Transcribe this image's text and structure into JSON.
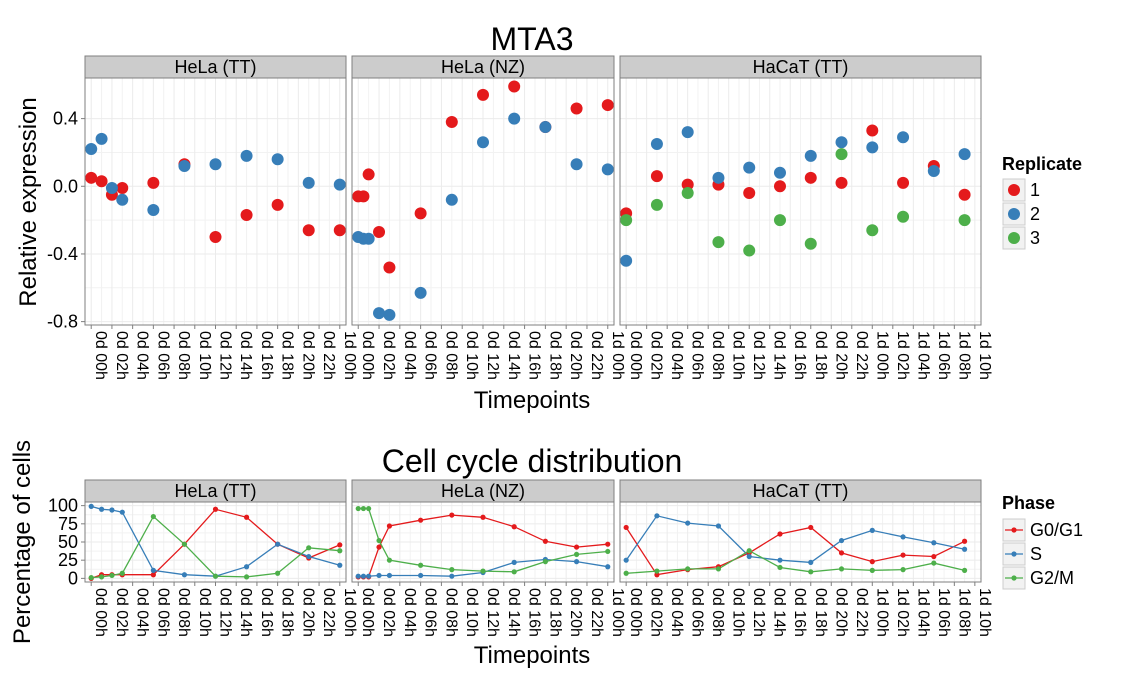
{
  "colors": {
    "rep1": "#E41A1C",
    "rep2": "#377EB8",
    "rep3": "#4DAF4A",
    "g0g1": "#E41A1C",
    "s": "#377EB8",
    "g2m": "#4DAF4A",
    "strip_bg": "#CCCCCC",
    "grid": "#EBEBEB"
  },
  "chart_data": [
    {
      "type": "scatter",
      "title": "MTA3",
      "xlabel": "Timepoints",
      "ylabel": "Relative expression",
      "ylim": [
        -0.82,
        0.64
      ],
      "yticks": [
        -0.8,
        -0.4,
        0.0,
        0.4
      ],
      "ytick_labels": [
        "-0.8",
        "-0.4",
        "0.0",
        "0.4"
      ],
      "legend": {
        "title": "Replicate",
        "position": "right",
        "labels": [
          "1",
          "2",
          "3"
        ]
      },
      "panels": [
        {
          "strip": "HeLa (TT)",
          "xrange": [
            -0.6,
            24.6
          ],
          "tick_positions": [
            0,
            2,
            4,
            6,
            8,
            10,
            12,
            14,
            16,
            18,
            20,
            22,
            24
          ],
          "tick_labels": [
            "0d 00h",
            "0d 02h",
            "0d 04h",
            "0d 06h",
            "0d 08h",
            "0d 10h",
            "0d 12h",
            "0d 14h",
            "0d 16h",
            "0d 18h",
            "0d 20h",
            "0d 22h",
            "1d 00h"
          ],
          "series": [
            {
              "name": "1",
              "x": [
                0,
                1,
                2,
                3,
                6,
                9,
                12,
                15,
                18,
                21,
                24
              ],
              "y": [
                0.05,
                0.03,
                -0.05,
                -0.01,
                0.02,
                0.13,
                -0.3,
                -0.17,
                -0.11,
                -0.26,
                -0.26
              ]
            },
            {
              "name": "2",
              "x": [
                0,
                1,
                2,
                3,
                6,
                9,
                12,
                15,
                18,
                21,
                24
              ],
              "y": [
                0.22,
                0.28,
                -0.01,
                -0.08,
                -0.14,
                0.12,
                0.13,
                0.18,
                0.16,
                0.02,
                0.01
              ]
            }
          ]
        },
        {
          "strip": "HeLa (NZ)",
          "xrange": [
            -0.6,
            24.6
          ],
          "tick_positions": [
            0,
            2,
            4,
            6,
            8,
            10,
            12,
            14,
            16,
            18,
            20,
            22,
            24
          ],
          "tick_labels": [
            "0d 00h",
            "0d 02h",
            "0d 04h",
            "0d 06h",
            "0d 08h",
            "0d 10h",
            "0d 12h",
            "0d 14h",
            "0d 16h",
            "0d 18h",
            "0d 20h",
            "0d 22h",
            "1d 00h"
          ],
          "series": [
            {
              "name": "1",
              "x": [
                0,
                0.5,
                1,
                2,
                3,
                6,
                9,
                12,
                15,
                18,
                21,
                24
              ],
              "y": [
                -0.06,
                -0.06,
                0.07,
                -0.27,
                -0.48,
                -0.16,
                0.38,
                0.54,
                0.59,
                0.35,
                0.46,
                0.48
              ]
            },
            {
              "name": "2",
              "x": [
                0,
                0.5,
                1,
                2,
                3,
                6,
                9,
                12,
                15,
                18,
                21,
                24
              ],
              "y": [
                -0.3,
                -0.31,
                -0.31,
                -0.75,
                -0.76,
                -0.63,
                -0.08,
                0.26,
                0.4,
                0.35,
                0.13,
                0.1
              ]
            }
          ]
        },
        {
          "strip": "HaCaT (TT)",
          "xrange": [
            -0.6,
            34.6
          ],
          "tick_positions": [
            0,
            2,
            4,
            6,
            8,
            10,
            12,
            14,
            16,
            18,
            20,
            22,
            24,
            26,
            28,
            30,
            32,
            34
          ],
          "tick_labels": [
            "0d 00h",
            "0d 02h",
            "0d 04h",
            "0d 06h",
            "0d 08h",
            "0d 10h",
            "0d 12h",
            "0d 14h",
            "0d 16h",
            "0d 18h",
            "0d 20h",
            "0d 22h",
            "1d 00h",
            "1d 02h",
            "1d 04h",
            "1d 06h",
            "1d 08h",
            "1d 10h"
          ],
          "series": [
            {
              "name": "1",
              "x": [
                0,
                3,
                6,
                9,
                12,
                15,
                18,
                21,
                24,
                27,
                30,
                33
              ],
              "y": [
                -0.16,
                0.06,
                0.01,
                0.01,
                -0.04,
                0.0,
                0.05,
                0.02,
                0.33,
                0.02,
                0.12,
                -0.05
              ]
            },
            {
              "name": "2",
              "x": [
                0,
                3,
                6,
                9,
                12,
                15,
                18,
                21,
                24,
                27,
                30,
                33
              ],
              "y": [
                -0.44,
                0.25,
                0.32,
                0.05,
                0.11,
                0.08,
                0.18,
                0.26,
                0.23,
                0.29,
                0.09,
                0.19
              ]
            },
            {
              "name": "3",
              "x": [
                0,
                3,
                6,
                9,
                12,
                15,
                18,
                21,
                24,
                27,
                30,
                33
              ],
              "y": [
                -0.2,
                -0.11,
                -0.04,
                -0.33,
                -0.38,
                -0.2,
                -0.34,
                0.19,
                -0.26,
                -0.18,
                null,
                -0.2
              ]
            }
          ]
        }
      ]
    },
    {
      "type": "line",
      "title": "Cell cycle distribution",
      "xlabel": "Timepoints",
      "ylabel": "Percentage of cells",
      "ylim": [
        -5,
        105
      ],
      "yticks": [
        0,
        25,
        50,
        75,
        100
      ],
      "ytick_labels": [
        "0",
        "25",
        "50",
        "75",
        "100"
      ],
      "legend": {
        "title": "Phase",
        "position": "right",
        "labels": [
          "G0/G1",
          "S",
          "G2/M"
        ]
      },
      "panels": [
        {
          "strip": "HeLa (TT)",
          "xrange": [
            -0.6,
            24.6
          ],
          "tick_positions": [
            0,
            2,
            4,
            6,
            8,
            10,
            12,
            14,
            16,
            18,
            20,
            22,
            24
          ],
          "tick_labels": [
            "0d 00h",
            "0d 02h",
            "0d 04h",
            "0d 06h",
            "0d 08h",
            "0d 10h",
            "0d 12h",
            "0d 14h",
            "0d 16h",
            "0d 18h",
            "0d 20h",
            "0d 22h",
            "1d 00h"
          ],
          "series": [
            {
              "name": "G0/G1",
              "x": [
                0,
                1,
                2,
                3,
                6,
                9,
                12,
                15,
                18,
                21,
                24
              ],
              "y": [
                0,
                5,
                5,
                5,
                5,
                47,
                95,
                84,
                47,
                28,
                46
              ]
            },
            {
              "name": "S",
              "x": [
                0,
                1,
                2,
                3,
                6,
                9,
                12,
                15,
                18,
                21,
                24
              ],
              "y": [
                99,
                95,
                94,
                91,
                11,
                5,
                3,
                16,
                47,
                30,
                18
              ]
            },
            {
              "name": "G2/M",
              "x": [
                0,
                1,
                2,
                3,
                6,
                9,
                12,
                15,
                18,
                21,
                24
              ],
              "y": [
                1,
                2,
                4,
                7,
                85,
                47,
                3,
                2,
                7,
                42,
                38
              ]
            }
          ]
        },
        {
          "strip": "HeLa (NZ)",
          "xrange": [
            -0.6,
            24.6
          ],
          "tick_positions": [
            0,
            2,
            4,
            6,
            8,
            10,
            12,
            14,
            16,
            18,
            20,
            22,
            24
          ],
          "tick_labels": [
            "0d 00h",
            "0d 02h",
            "0d 04h",
            "0d 06h",
            "0d 08h",
            "0d 10h",
            "0d 12h",
            "0d 14h",
            "0d 16h",
            "0d 18h",
            "0d 20h",
            "0d 22h",
            "1d 00h"
          ],
          "series": [
            {
              "name": "G0/G1",
              "x": [
                0,
                0.5,
                1,
                2,
                3,
                6,
                9,
                12,
                15,
                18,
                21,
                24
              ],
              "y": [
                2,
                2,
                2,
                43,
                72,
                80,
                87,
                84,
                71,
                51,
                43,
                47
              ]
            },
            {
              "name": "S",
              "x": [
                0,
                0.5,
                1,
                2,
                3,
                6,
                9,
                12,
                15,
                18,
                21,
                24
              ],
              "y": [
                3,
                3,
                3,
                4,
                4,
                4,
                3,
                8,
                22,
                26,
                23,
                16
              ]
            },
            {
              "name": "G2/M",
              "x": [
                0,
                0.5,
                1,
                2,
                3,
                6,
                9,
                12,
                15,
                18,
                21,
                24
              ],
              "y": [
                96,
                96,
                96,
                52,
                25,
                18,
                12,
                10,
                9,
                23,
                33,
                37
              ]
            }
          ]
        },
        {
          "strip": "HaCaT (TT)",
          "xrange": [
            -0.6,
            34.6
          ],
          "tick_positions": [
            0,
            2,
            4,
            6,
            8,
            10,
            12,
            14,
            16,
            18,
            20,
            22,
            24,
            26,
            28,
            30,
            32,
            34
          ],
          "tick_labels": [
            "0d 00h",
            "0d 02h",
            "0d 04h",
            "0d 06h",
            "0d 08h",
            "0d 10h",
            "0d 12h",
            "0d 14h",
            "0d 16h",
            "0d 18h",
            "0d 20h",
            "0d 22h",
            "1d 00h",
            "1d 02h",
            "1d 04h",
            "1d 06h",
            "1d 08h",
            "1d 10h"
          ],
          "series": [
            {
              "name": "G0/G1",
              "x": [
                0,
                3,
                6,
                9,
                12,
                15,
                18,
                21,
                24,
                27,
                30,
                33
              ],
              "y": [
                70,
                5,
                12,
                16,
                35,
                61,
                70,
                35,
                23,
                32,
                30,
                51
              ]
            },
            {
              "name": "S",
              "x": [
                0,
                3,
                6,
                9,
                12,
                15,
                18,
                21,
                24,
                27,
                30,
                33
              ],
              "y": [
                25,
                86,
                76,
                72,
                30,
                25,
                22,
                52,
                66,
                57,
                49,
                40
              ]
            },
            {
              "name": "G2/M",
              "x": [
                0,
                3,
                6,
                9,
                12,
                15,
                18,
                21,
                24,
                27,
                30,
                33
              ],
              "y": [
                7,
                10,
                13,
                13,
                38,
                15,
                9,
                13,
                11,
                12,
                21,
                11
              ]
            }
          ]
        }
      ]
    }
  ]
}
